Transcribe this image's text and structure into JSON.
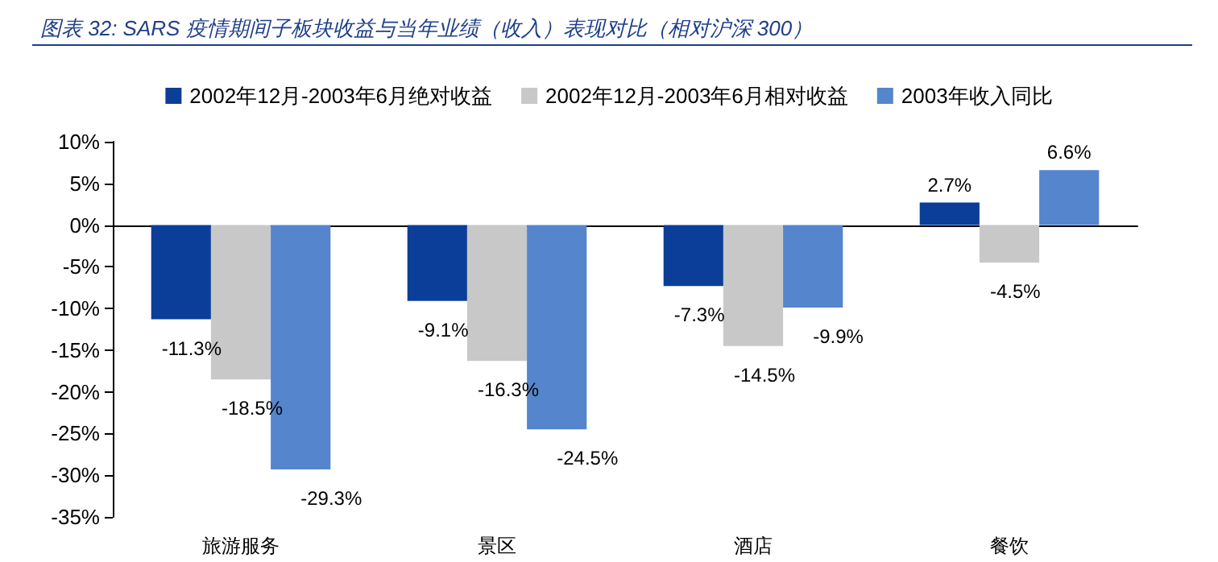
{
  "chart_data": {
    "type": "bar",
    "title": "图表 32: SARS 疫情期间子板块收益与当年业绩（收入）表现对比（相对沪深 300）",
    "categories": [
      "旅游服务",
      "景区",
      "酒店",
      "餐饮"
    ],
    "series": [
      {
        "name": "2002年12月-2003年6月绝对收益",
        "color": "#0b3e98",
        "values": [
          -11.3,
          -9.1,
          -7.3,
          2.7
        ],
        "value_labels": [
          "-11.3%",
          "-9.1%",
          "-7.3%",
          "2.7%"
        ]
      },
      {
        "name": "2002年12月-2003年6月相对收益",
        "color": "#c8c8c8",
        "values": [
          -18.5,
          -16.3,
          -14.5,
          -4.5
        ],
        "value_labels": [
          "-18.5%",
          "-16.3%",
          "-14.5%",
          "-4.5%"
        ]
      },
      {
        "name": "2003年收入同比",
        "color": "#5585cc",
        "values": [
          -29.3,
          -24.5,
          -9.9,
          6.6
        ],
        "value_labels": [
          "-29.3%",
          "-24.5%",
          "-9.9%",
          "6.6%"
        ]
      }
    ],
    "ylim": [
      -35,
      10
    ],
    "yticks": [
      {
        "value": -35,
        "label": "-35%"
      },
      {
        "value": -30,
        "label": "-30%"
      },
      {
        "value": -25,
        "label": "-25%"
      },
      {
        "value": -20,
        "label": "-20%"
      },
      {
        "value": -15,
        "label": "-15%"
      },
      {
        "value": -10,
        "label": "-10%"
      },
      {
        "value": -5,
        "label": "-5%"
      },
      {
        "value": 0,
        "label": "0%"
      },
      {
        "value": 5,
        "label": "5%"
      },
      {
        "value": 10,
        "label": "10%"
      }
    ],
    "legend": "top"
  }
}
